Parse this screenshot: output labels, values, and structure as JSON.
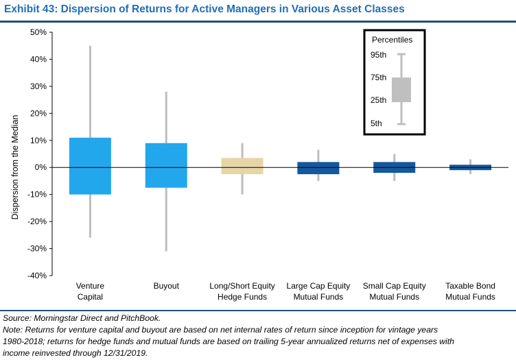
{
  "title": "Exhibit 43: Dispersion of Returns for Active Managers in Various Asset Classes",
  "chart_data": {
    "type": "boxplot",
    "ylabel": "Dispersion from the Median",
    "ylim": [
      -40,
      50
    ],
    "yticks": [
      50,
      40,
      30,
      20,
      10,
      0,
      -10,
      -20,
      -30,
      -40
    ],
    "ytick_labels": [
      "50%",
      "40%",
      "30%",
      "20%",
      "10%",
      "0%",
      "-10%",
      "-20%",
      "-30%",
      "-40%"
    ],
    "categories": [
      [
        "Venture",
        "Capital"
      ],
      [
        "Buyout"
      ],
      [
        "Long/Short Equity",
        "Hedge Funds"
      ],
      [
        "Large Cap Equity",
        "Mutual Funds"
      ],
      [
        "Small Cap Equity",
        "Mutual Funds"
      ],
      [
        "Taxable Bond",
        "Mutual Funds"
      ]
    ],
    "series": [
      {
        "p5": -26,
        "p25": -10,
        "p75": 11,
        "p95": 45,
        "color": "#23a7ec"
      },
      {
        "p5": -31,
        "p25": -7.5,
        "p75": 9,
        "p95": 28,
        "color": "#23a7ec"
      },
      {
        "p5": -10,
        "p25": -2.5,
        "p75": 3.5,
        "p95": 9,
        "color": "#e6d5a6"
      },
      {
        "p5": -5,
        "p25": -2.5,
        "p75": 2,
        "p95": 6.5,
        "color": "#14589e"
      },
      {
        "p5": -5,
        "p25": -2,
        "p75": 2,
        "p95": 5,
        "color": "#14589e"
      },
      {
        "p5": -2.5,
        "p25": -1,
        "p75": 1,
        "p95": 3,
        "color": "#14589e"
      }
    ],
    "whisker_color": "#bdbdbd",
    "legend": {
      "title": "Percentiles",
      "labels": [
        "95th",
        "75th",
        "25th",
        "5th"
      ],
      "placement": "top-right",
      "color": "#bfbfbf"
    }
  },
  "source": "Source: Morningstar Direct and PitchBook.",
  "note_lines": [
    "Note: Returns for venture capital and buyout are based on net internal rates of return since inception for vintage years",
    "1980-2018; returns for hedge funds and mutual funds are based on trailing 5-year annualized returns net of expenses with",
    "income reinvested through 12/31/2019."
  ]
}
